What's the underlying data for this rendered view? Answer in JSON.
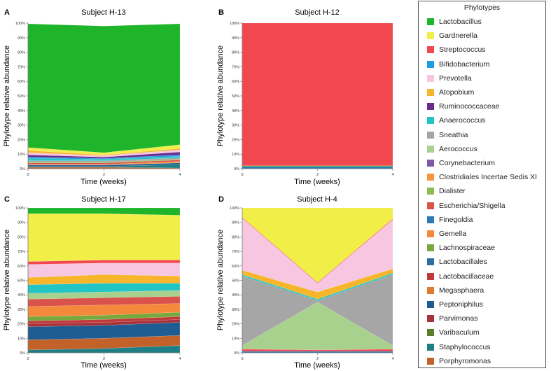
{
  "phylotypes": [
    {
      "name": "Lactobacillus",
      "color": "#1eb52b"
    },
    {
      "name": "Gardnerella",
      "color": "#f2ee48"
    },
    {
      "name": "Streptococcus",
      "color": "#f2474f"
    },
    {
      "name": "Bifidobacterium",
      "color": "#1c9ee0"
    },
    {
      "name": "Prevotella",
      "color": "#f7c6e1"
    },
    {
      "name": "Atopobium",
      "color": "#f7b52b"
    },
    {
      "name": "Ruminococcaceae",
      "color": "#6a2a90"
    },
    {
      "name": "Anaerococcus",
      "color": "#22c4c4"
    },
    {
      "name": "Sneathia",
      "color": "#a6a6a6"
    },
    {
      "name": "Aerococcus",
      "color": "#a9d18e"
    },
    {
      "name": "Corynebacterium",
      "color": "#7e58a6"
    },
    {
      "name": "Clostridiales Incertae Sedis XI",
      "color": "#f79440"
    },
    {
      "name": "Dialister",
      "color": "#8dbc4f"
    },
    {
      "name": "Escherichia/Shigella",
      "color": "#d9534a"
    },
    {
      "name": "Finegoldia",
      "color": "#2f79b5"
    },
    {
      "name": "Gemella",
      "color": "#f5893b"
    },
    {
      "name": "Lachnospiraceae",
      "color": "#79a83f"
    },
    {
      "name": "Lactobacillales",
      "color": "#2c6fa3"
    },
    {
      "name": "Lactobacillaceae",
      "color": "#c0393b"
    },
    {
      "name": "Megasphaera",
      "color": "#e07a30"
    },
    {
      "name": "Peptoniphilus",
      "color": "#1f5c94"
    },
    {
      "name": "Parvimonas",
      "color": "#a8323a"
    },
    {
      "name": "Varibaculum",
      "color": "#5a7d2a"
    },
    {
      "name": "Staphylococcus",
      "color": "#1f7f84"
    },
    {
      "name": "Porphyromonas",
      "color": "#c2622a"
    }
  ],
  "legend": {
    "title": "Phylotypes"
  },
  "chart_data": [
    {
      "type": "area",
      "stacked": true,
      "panel": "A",
      "title": "Subject H-13",
      "xlabel": "Time (weeks)",
      "ylabel": "Phylotype relative  abundance",
      "x": [
        0,
        2,
        4
      ],
      "xticks": [
        "0",
        "2",
        "4"
      ],
      "ylim": [
        0,
        100
      ],
      "yticks": [
        "0%",
        "10%",
        "20%",
        "30%",
        "40%",
        "50%",
        "60%",
        "70%",
        "80%",
        "90%",
        "100%"
      ],
      "series": [
        {
          "name": "Porphyromonas",
          "values": [
            1,
            1,
            0.5
          ]
        },
        {
          "name": "Staphylococcus",
          "values": [
            0.5,
            0.5,
            2.5
          ]
        },
        {
          "name": "Peptoniphilus",
          "values": [
            1,
            1,
            1
          ]
        },
        {
          "name": "Clostridiales Incertae Sedis XI",
          "values": [
            0.5,
            0.5,
            1
          ]
        },
        {
          "name": "Escherichia/Shigella",
          "values": [
            1,
            1,
            1
          ]
        },
        {
          "name": "Dialister",
          "values": [
            0.5,
            0.5,
            0.5
          ]
        },
        {
          "name": "Sneathia",
          "values": [
            1,
            1,
            1
          ]
        },
        {
          "name": "Anaerococcus",
          "values": [
            1.5,
            1,
            1
          ]
        },
        {
          "name": "Bifidobacterium",
          "values": [
            1,
            0.5,
            1
          ]
        },
        {
          "name": "Ruminococcaceae",
          "values": [
            1.5,
            1,
            2
          ]
        },
        {
          "name": "Prevotella",
          "values": [
            1.5,
            1,
            1.5
          ]
        },
        {
          "name": "Atopobium",
          "values": [
            1.5,
            0.5,
            1
          ]
        },
        {
          "name": "Gardnerella",
          "values": [
            2,
            1.5,
            2.5
          ]
        },
        {
          "name": "Lactobacillus",
          "values": [
            85,
            87,
            83
          ]
        }
      ]
    },
    {
      "type": "area",
      "stacked": true,
      "panel": "B",
      "title": "Subject H-12",
      "xlabel": "Time (weeks)",
      "ylabel": "Phylotype relative  abundance",
      "x": [
        0,
        2,
        4
      ],
      "xticks": [
        "0",
        "2",
        "4"
      ],
      "ylim": [
        0,
        100
      ],
      "yticks": [
        "0%",
        "10%",
        "20%",
        "30%",
        "40%",
        "50%",
        "60%",
        "70%",
        "80%",
        "90%",
        "100%"
      ],
      "series": [
        {
          "name": "Finegoldia",
          "values": [
            1.5,
            1.5,
            1.5
          ]
        },
        {
          "name": "Lactobacillus",
          "values": [
            0.5,
            0.5,
            0.5
          ]
        },
        {
          "name": "Streptococcus",
          "values": [
            98,
            98,
            98
          ]
        }
      ]
    },
    {
      "type": "area",
      "stacked": true,
      "panel": "C",
      "title": "Subject H-17",
      "xlabel": "Time (weeks)",
      "ylabel": "Phylotype relative  abundance",
      "x": [
        0,
        2,
        4
      ],
      "xticks": [
        "0",
        "2",
        "4"
      ],
      "ylim": [
        0,
        100
      ],
      "yticks": [
        "0%",
        "10%",
        "20%",
        "30%",
        "40%",
        "50%",
        "60%",
        "70%",
        "80%",
        "90%",
        "100%"
      ],
      "series": [
        {
          "name": "Staphylococcus",
          "values": [
            2,
            3,
            5
          ]
        },
        {
          "name": "Porphyromonas",
          "values": [
            7,
            7,
            7
          ]
        },
        {
          "name": "Peptoniphilus",
          "values": [
            9,
            9,
            9
          ]
        },
        {
          "name": "Parvimonas",
          "values": [
            2,
            2,
            2
          ]
        },
        {
          "name": "Lactobacillaceae",
          "values": [
            2,
            2,
            2
          ]
        },
        {
          "name": "Lachnospiraceae",
          "values": [
            3,
            3,
            3
          ]
        },
        {
          "name": "Gemella",
          "values": [
            7,
            7,
            6
          ]
        },
        {
          "name": "Escherichia/Shigella",
          "values": [
            5,
            5,
            5
          ]
        },
        {
          "name": "Aerococcus",
          "values": [
            4,
            4,
            4
          ]
        },
        {
          "name": "Anaerococcus",
          "values": [
            6,
            6,
            5
          ]
        },
        {
          "name": "Atopobium",
          "values": [
            5,
            6,
            5
          ]
        },
        {
          "name": "Prevotella",
          "values": [
            9,
            8,
            9
          ]
        },
        {
          "name": "Streptococcus",
          "values": [
            2,
            2,
            2
          ]
        },
        {
          "name": "Gardnerella",
          "values": [
            33,
            32,
            31
          ]
        },
        {
          "name": "Lactobacillus",
          "values": [
            4,
            4,
            5
          ]
        }
      ]
    },
    {
      "type": "area",
      "stacked": true,
      "panel": "D",
      "title": "Subject H-4",
      "xlabel": "Time (weeks)",
      "ylabel": "Phylotype relative  abundance",
      "x": [
        0,
        2,
        4
      ],
      "xticks": [
        "0",
        "2",
        "4"
      ],
      "ylim": [
        0,
        100
      ],
      "yticks": [
        "0%",
        "10%",
        "20%",
        "30%",
        "40%",
        "50%",
        "60%",
        "70%",
        "80%",
        "90%",
        "100%"
      ],
      "series": [
        {
          "name": "Finegoldia",
          "values": [
            1,
            1,
            1
          ]
        },
        {
          "name": "Streptococcus",
          "values": [
            1.5,
            1,
            1.5
          ]
        },
        {
          "name": "Aerococcus",
          "values": [
            2.5,
            33,
            2.5
          ]
        },
        {
          "name": "Sneathia",
          "values": [
            48,
            1,
            49
          ]
        },
        {
          "name": "Anaerococcus",
          "values": [
            1,
            1,
            1
          ]
        },
        {
          "name": "Atopobium",
          "values": [
            3,
            5,
            3
          ]
        },
        {
          "name": "Prevotella",
          "values": [
            36,
            6,
            34
          ]
        },
        {
          "name": "Streptococcus",
          "values": [
            0.5,
            0.5,
            0.5
          ]
        },
        {
          "name": "Gardnerella",
          "values": [
            6.5,
            51.5,
            7.5
          ]
        }
      ]
    }
  ]
}
